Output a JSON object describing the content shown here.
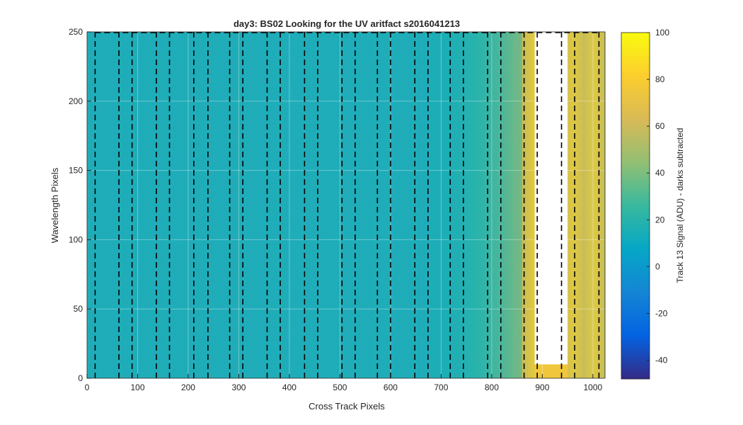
{
  "chart_data": {
    "type": "heatmap",
    "title": "day3: BS02  Looking for the UV aritfact  s2016041213",
    "xlabel": "Cross Track Pixels",
    "ylabel": "Wavelength Pixels",
    "colorbar_label": "Track 13 Signal (ADU) - darks subtracted",
    "xlim": [
      0,
      1024
    ],
    "ylim": [
      0,
      250
    ],
    "clim": [
      -48,
      100
    ],
    "colormap": "parula",
    "x_ticks": [
      0,
      100,
      200,
      300,
      400,
      500,
      600,
      700,
      800,
      900,
      1000
    ],
    "y_ticks": [
      0,
      50,
      100,
      150,
      200,
      250
    ],
    "colorbar_ticks": [
      -40,
      -20,
      0,
      20,
      40,
      60,
      80,
      100
    ],
    "background_level_adu": 15,
    "artifact_region": {
      "x_start": 860,
      "x_end": 1024,
      "peak_signal_adu": 80
    },
    "saturated_blank_region": {
      "x": [
        885,
        950
      ],
      "y": [
        10,
        250
      ]
    },
    "dashed_boundaries_x": [
      16,
      63,
      89,
      137,
      163,
      211,
      239,
      282,
      308,
      356,
      382,
      430,
      456,
      504,
      530,
      574,
      600,
      648,
      674,
      718,
      744,
      792,
      818,
      864,
      890,
      938,
      964,
      1012
    ],
    "grid": true
  }
}
